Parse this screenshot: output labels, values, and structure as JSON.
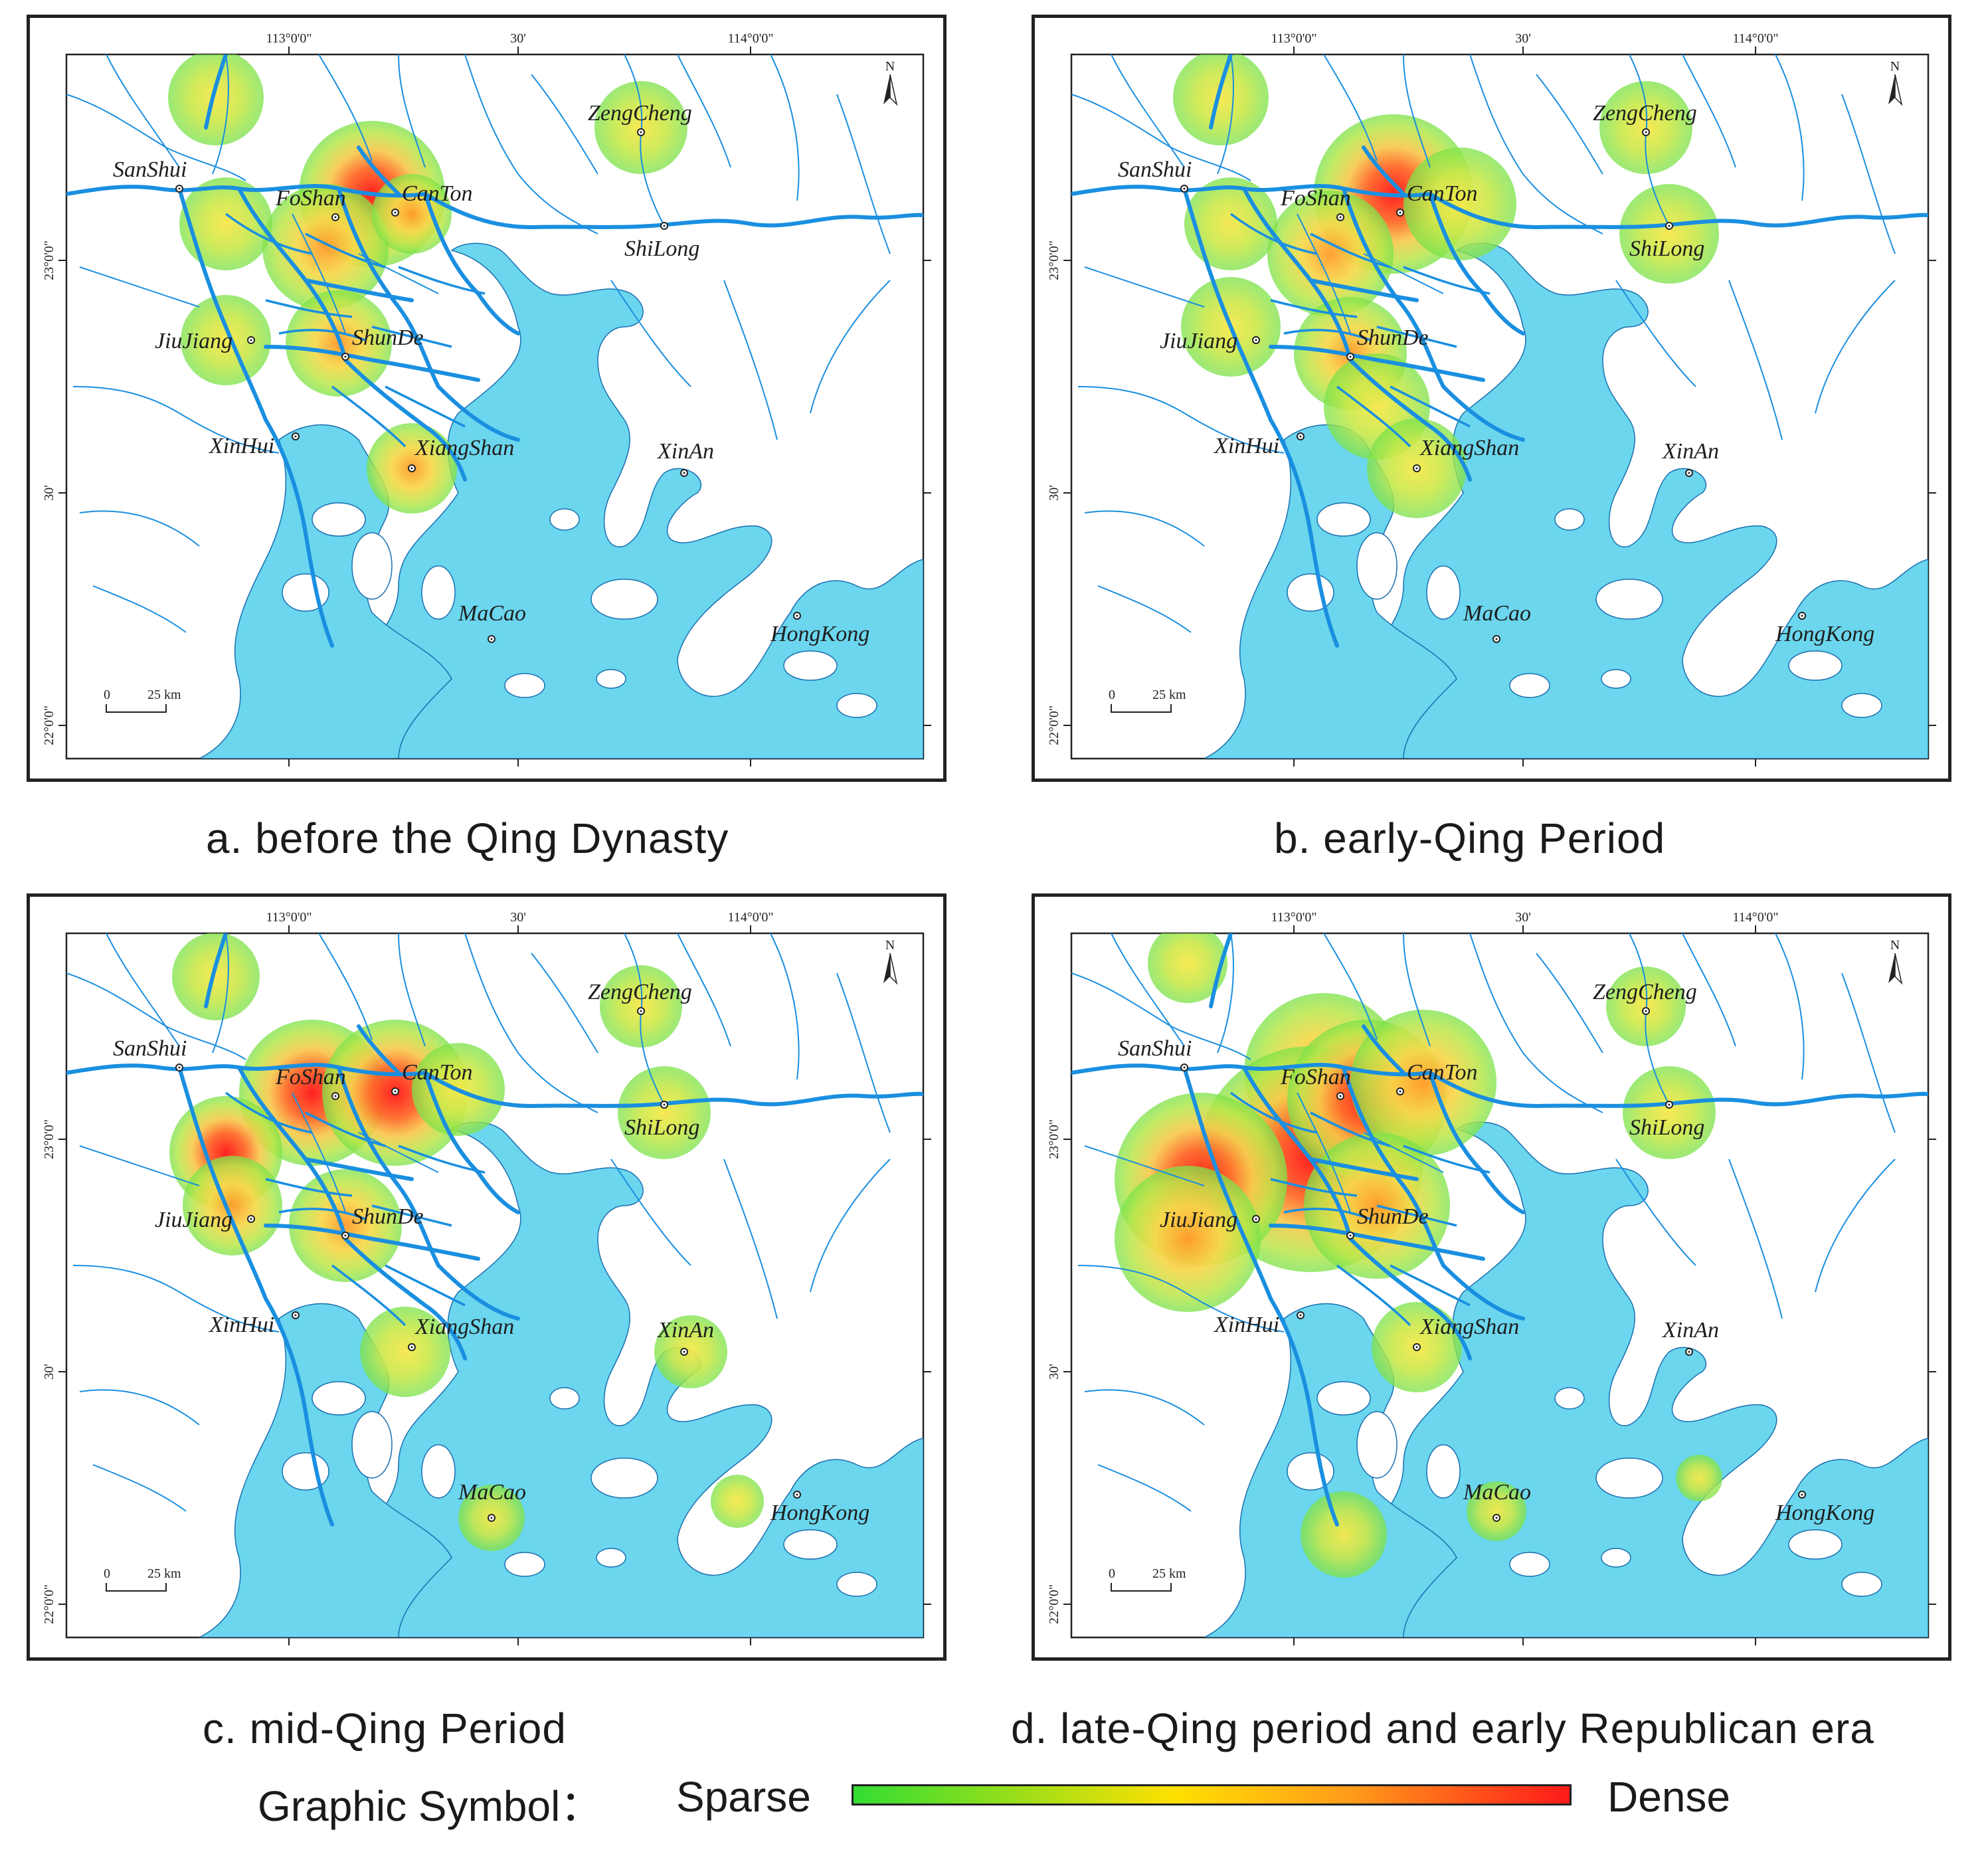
{
  "figure": {
    "colors": {
      "water": "#6bd6ee",
      "river": "#1a8fe0",
      "land": "#ffffff",
      "sparse": "#33dd33",
      "mid": "#ffe000",
      "dense": "#ff1a1a"
    },
    "axes": {
      "top_ticks": [
        "113°0'0\"",
        "30'",
        "114°0'0\""
      ],
      "left_ticks": [
        "23°0'0\"",
        "30'",
        "22°0'0\""
      ]
    },
    "scale_bar": {
      "zero": "0",
      "label": "25 km"
    },
    "north_label": "N",
    "places": {
      "sanshui": "SanShui",
      "foshan": "FoShan",
      "canton": "CanTon",
      "zengcheng": "ZengCheng",
      "shilong": "ShiLong",
      "jiujiang": "JiuJiang",
      "shunde": "ShunDe",
      "xinhui": "XinHui",
      "xiangshan": "XiangShan",
      "xinan": "XinAn",
      "macao": "MaCao",
      "hongkong": "HongKong"
    }
  },
  "panels": [
    {
      "id": "a",
      "caption": "a. before the Qing Dynasty"
    },
    {
      "id": "b",
      "caption": "b. early-Qing Period"
    },
    {
      "id": "c",
      "caption": "c. mid-Qing Period"
    },
    {
      "id": "d",
      "caption": "d. late-Qing period and early Republican era"
    }
  ],
  "legend": {
    "title": "Graphic Symbol：",
    "low": "Sparse",
    "high": "Dense"
  }
}
